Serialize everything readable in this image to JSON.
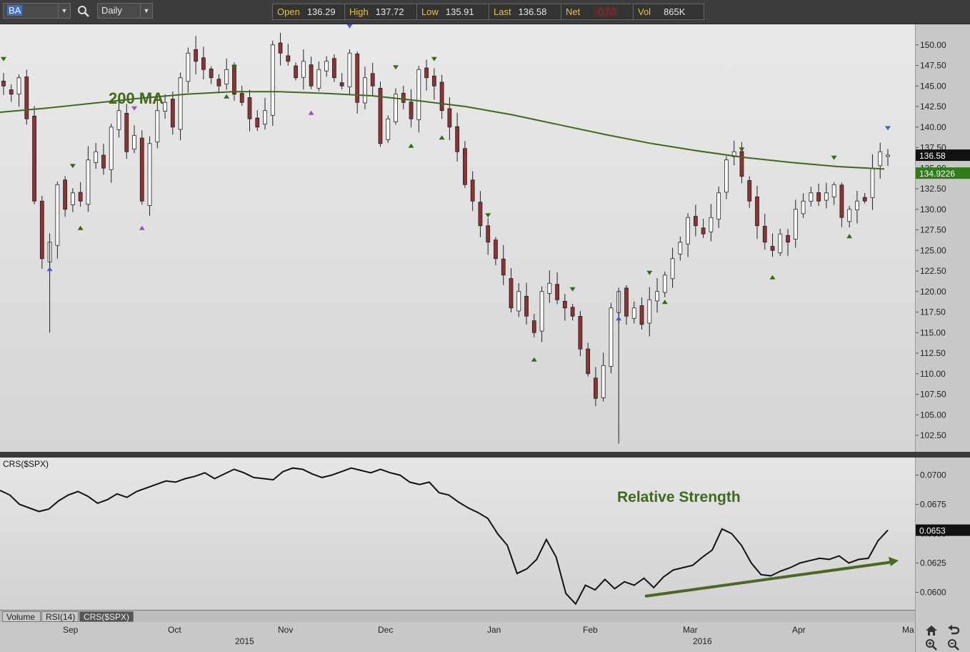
{
  "toolbar": {
    "symbol": "BA",
    "period": "Daily",
    "quote": [
      {
        "label": "Open",
        "value": "136.29"
      },
      {
        "label": "High",
        "value": "137.72"
      },
      {
        "label": "Low",
        "value": "135.91"
      },
      {
        "label": "Last",
        "value": "136.58"
      },
      {
        "label": "Net",
        "value": "-0.50"
      },
      {
        "label": "Vol",
        "value": "865K"
      }
    ],
    "icons": [
      "chevron-down-icon",
      "search-icon"
    ]
  },
  "price_panel": {
    "annotation": "200 MA",
    "axis_labels": [
      "150.00",
      "147.50",
      "145.00",
      "142.50",
      "140.00",
      "137.50",
      "135.00",
      "132.50",
      "130.00",
      "127.50",
      "125.00",
      "122.50",
      "120.00",
      "117.50",
      "115.00",
      "112.50",
      "110.00",
      "107.50",
      "105.00",
      "102.50"
    ],
    "last_price_tag": "136.58",
    "ma_tag": "134.9226",
    "colors": {
      "up": "#ffffff",
      "down": "#8f3232",
      "ma": "#3f6a1c",
      "last_tag": "#111111",
      "ma_tag": "#2e7d16",
      "marker_green": "#2f6e10",
      "marker_blue": "#4a5bd0",
      "marker_purple": "#9a4fc8"
    }
  },
  "indicator_panel": {
    "title": "CRS($SPX)",
    "annotation": "Relative Strength",
    "axis_labels": [
      "0.0700",
      "0.0675",
      "0.0650",
      "0.0625",
      "0.0600"
    ],
    "value_tag": "0.0653"
  },
  "tabs": [
    {
      "label": "Volume",
      "active": false
    },
    {
      "label": "RSI(14)",
      "active": false
    },
    {
      "label": "CRS($SPX)",
      "active": true
    }
  ],
  "date_axis": {
    "months": [
      "Sep",
      "Oct",
      "Nov",
      "Dec",
      "Jan",
      "Feb",
      "Mar",
      "Apr",
      "Ma"
    ],
    "years": [
      "2015",
      "2016"
    ]
  },
  "controls": [
    "home-icon",
    "undo-icon",
    "zoom-in-icon",
    "zoom-out-icon"
  ],
  "chart_data": [
    {
      "type": "candlestick",
      "title": "",
      "series": [
        {
          "name": "200 MA",
          "values": [
            141.8,
            142.3,
            142.9,
            143.5,
            144.0,
            144.3,
            144.3,
            144.1,
            143.8,
            143.2,
            142.5,
            141.5,
            140.3,
            139.1,
            138.0,
            137.1,
            136.3,
            135.7,
            135.2,
            134.9
          ]
        }
      ],
      "ylim": [
        100.5,
        152.5
      ],
      "price_path": [
        145,
        144,
        146,
        141,
        131,
        124,
        126,
        133,
        130,
        132,
        131,
        136,
        137,
        135,
        140,
        142,
        137,
        139,
        131,
        138,
        142,
        143,
        140,
        146,
        149,
        148,
        147,
        146,
        145,
        147,
        144,
        143,
        141,
        140,
        142,
        150,
        149,
        148,
        146,
        148,
        145,
        147,
        148,
        146,
        145,
        149,
        143,
        146,
        145,
        138,
        141,
        144,
        143,
        141,
        147,
        146,
        145,
        142,
        140,
        137,
        133,
        131,
        128,
        126,
        124,
        122,
        118,
        120,
        117,
        115,
        120,
        121,
        119,
        118,
        117,
        113,
        110,
        107,
        111,
        118,
        120,
        117,
        118,
        116,
        119,
        120,
        122,
        124,
        126,
        129,
        128,
        127,
        129,
        132,
        136,
        137,
        134,
        131,
        128,
        126,
        125,
        127,
        126,
        130,
        131,
        132,
        131,
        132,
        133,
        129,
        130,
        131,
        131,
        135,
        137,
        136.6
      ],
      "markers": "pivot highs and lows"
    },
    {
      "type": "line",
      "series": [
        {
          "name": "CRS($SPX)"
        }
      ],
      "ylim": [
        0.0585,
        0.0715
      ],
      "values": [
        0.0687,
        0.0683,
        0.0675,
        0.0672,
        0.0669,
        0.0671,
        0.0678,
        0.0683,
        0.0686,
        0.0682,
        0.0676,
        0.0679,
        0.0684,
        0.0681,
        0.0686,
        0.0689,
        0.0692,
        0.0695,
        0.0694,
        0.0697,
        0.0699,
        0.0702,
        0.0697,
        0.0701,
        0.0705,
        0.0702,
        0.0698,
        0.0697,
        0.0696,
        0.0703,
        0.0706,
        0.0705,
        0.0701,
        0.0698,
        0.07,
        0.0703,
        0.0706,
        0.0704,
        0.0702,
        0.0705,
        0.0702,
        0.07,
        0.0694,
        0.0692,
        0.0694,
        0.0685,
        0.0683,
        0.0677,
        0.0672,
        0.0668,
        0.0663,
        0.065,
        0.064,
        0.0616,
        0.062,
        0.0628,
        0.0645,
        0.063,
        0.0599,
        0.059,
        0.0606,
        0.0602,
        0.0611,
        0.0603,
        0.0609,
        0.0606,
        0.0612,
        0.0604,
        0.0613,
        0.0619,
        0.0621,
        0.0623,
        0.063,
        0.0636,
        0.0654,
        0.065,
        0.064,
        0.0625,
        0.0615,
        0.0614,
        0.0618,
        0.0621,
        0.0625,
        0.0627,
        0.0629,
        0.0628,
        0.0631,
        0.0625,
        0.0628,
        0.0629,
        0.0644,
        0.0653
      ]
    }
  ]
}
